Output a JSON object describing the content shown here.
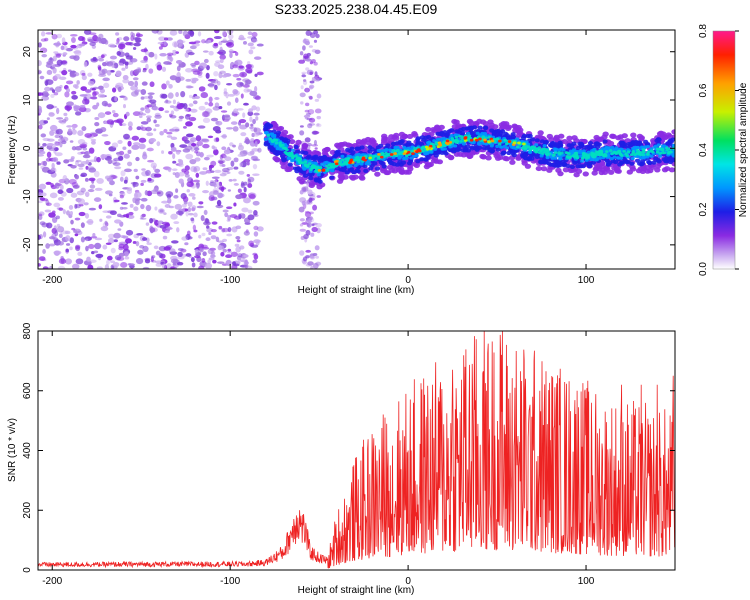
{
  "chart_data": [
    {
      "type": "heatmap",
      "title": "S233.2025.238.04.45.E09",
      "xlabel": "Height of straight line (km)",
      "ylabel": "Frequency (Hz)",
      "xlim": [
        -208,
        150
      ],
      "ylim": [
        -25,
        24.5
      ],
      "xticks": [
        -200,
        -100,
        0,
        100
      ],
      "xtick_labels": [
        "-200",
        "-100",
        "0",
        "100"
      ],
      "yticks": [
        20,
        10,
        0,
        -10,
        -20
      ],
      "ytick_labels": [
        "20",
        "10",
        "0",
        "-10",
        "-20"
      ],
      "colorbar": {
        "label": "Normalized spectral amplitude",
        "range": [
          0,
          0.8
        ],
        "ticks": [
          0,
          0.2,
          0.4,
          0.6,
          0.8
        ],
        "tick_labels": [
          "0.0",
          "0.2",
          "0.4",
          "0.6",
          "0.8"
        ],
        "colors": [
          "#ffffff",
          "#c8a8f0",
          "#8a2be2",
          "#1e1ee6",
          "#0096ff",
          "#00e5e5",
          "#00e060",
          "#c8f000",
          "#ffa000",
          "#ff2000",
          "#ff1a8c"
        ]
      },
      "ridge": {
        "name": "",
        "x": [
          -80,
          -70,
          -60,
          -50,
          -45,
          -40,
          -30,
          -20,
          -10,
          0,
          10,
          20,
          30,
          40,
          50,
          60,
          70,
          80,
          90,
          100,
          110,
          120,
          130,
          140,
          150
        ],
        "y": [
          3,
          0,
          -3,
          -4.5,
          -4,
          -3,
          -2.5,
          -2,
          -1,
          -1,
          0,
          1,
          2,
          2,
          1.5,
          1,
          0,
          -1,
          -1.5,
          -1.5,
          -1,
          -1,
          -1,
          -0.5,
          -0.5
        ]
      },
      "noise_region_x": [
        -208,
        -83
      ],
      "noise_stripe_x": [
        -60,
        -50
      ],
      "grid": false
    },
    {
      "type": "line",
      "xlabel": "Height of straight line (km)",
      "ylabel": "SNR (10 * v/v)",
      "xlim": [
        -208,
        150
      ],
      "ylim": [
        0,
        800
      ],
      "xticks": [
        -200,
        -100,
        0,
        100
      ],
      "xtick_labels": [
        "-200",
        "-100",
        "0",
        "100"
      ],
      "yticks": [
        0,
        200,
        400,
        600,
        800
      ],
      "ytick_labels": [
        "0",
        "200",
        "400",
        "600",
        "800"
      ],
      "color": "#ee2222",
      "envelope": {
        "x": [
          -208,
          -90,
          -80,
          -70,
          -65,
          -62,
          -58,
          -55,
          -50,
          -45,
          -40,
          -30,
          -20,
          -10,
          0,
          10,
          20,
          30,
          40,
          50,
          60,
          70,
          80,
          90,
          100,
          110,
          120,
          130,
          140,
          150
        ],
        "y": [
          18,
          20,
          25,
          60,
          130,
          170,
          130,
          60,
          40,
          30,
          110,
          200,
          260,
          300,
          330,
          360,
          380,
          410,
          430,
          440,
          420,
          400,
          380,
          360,
          340,
          320,
          310,
          300,
          290,
          290
        ]
      },
      "peaks": [
        {
          "x": 53,
          "y": 800
        },
        {
          "x": 36,
          "y": 690
        },
        {
          "x": 32,
          "y": 680
        },
        {
          "x": 25,
          "y": 670
        },
        {
          "x": 18,
          "y": 600
        },
        {
          "x": 44,
          "y": 600
        },
        {
          "x": 60,
          "y": 610
        },
        {
          "x": 66,
          "y": 640
        },
        {
          "x": 70,
          "y": 580
        },
        {
          "x": 74,
          "y": 600
        },
        {
          "x": 95,
          "y": 600
        },
        {
          "x": 103,
          "y": 560
        },
        {
          "x": 120,
          "y": 620
        },
        {
          "x": 131,
          "y": 620
        },
        {
          "x": 140,
          "y": 620
        },
        {
          "x": 149,
          "y": 650
        },
        {
          "x": 10,
          "y": 450
        },
        {
          "x": 0,
          "y": 400
        },
        {
          "x": -10,
          "y": 350
        }
      ],
      "grid": false
    }
  ]
}
